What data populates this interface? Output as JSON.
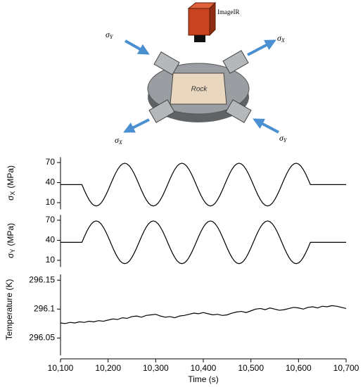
{
  "diagram": {
    "camera_label": "ImageIR",
    "specimen_label": "Rock",
    "stress_labels": [
      {
        "symbol": "σ",
        "sub": "Y"
      },
      {
        "symbol": "σ",
        "sub": "X"
      },
      {
        "symbol": "σ",
        "sub": "X"
      },
      {
        "symbol": "σ",
        "sub": "Y"
      }
    ]
  },
  "chart_data": [
    {
      "type": "line",
      "ylabel": [
        "σ",
        "X",
        "(MPa)"
      ],
      "x": [
        10100,
        10145,
        10150,
        10155,
        10160,
        10165,
        10170,
        10175,
        10180,
        10185,
        10190,
        10195,
        10200,
        10205,
        10210,
        10215,
        10220,
        10225,
        10230,
        10235,
        10240,
        10245,
        10250,
        10255,
        10260,
        10265,
        10270,
        10275,
        10280,
        10285,
        10290,
        10295,
        10300,
        10305,
        10310,
        10315,
        10320,
        10325,
        10330,
        10335,
        10340,
        10345,
        10350,
        10355,
        10360,
        10365,
        10370,
        10375,
        10380,
        10385,
        10390,
        10395,
        10400,
        10405,
        10410,
        10415,
        10420,
        10425,
        10430,
        10435,
        10440,
        10445,
        10450,
        10455,
        10460,
        10465,
        10470,
        10475,
        10480,
        10485,
        10490,
        10495,
        10500,
        10505,
        10510,
        10515,
        10520,
        10525,
        10530,
        10535,
        10540,
        10545,
        10550,
        10555,
        10560,
        10565,
        10570,
        10575,
        10580,
        10585,
        10590,
        10595,
        10600,
        10605,
        10610,
        10615,
        10620,
        10625,
        10700
      ],
      "series": [
        {
          "color": "#000000",
          "values": [
            37,
            37,
            28.7,
            21,
            14.4,
            9.3,
            6.1,
            5,
            6.1,
            9.3,
            14.4,
            21,
            28.7,
            37,
            45.3,
            53,
            59.6,
            64.7,
            67.9,
            69,
            67.9,
            64.7,
            59.6,
            53,
            45.3,
            37,
            28.7,
            21,
            14.4,
            9.3,
            6.1,
            5,
            6.1,
            9.3,
            14.4,
            21,
            28.7,
            37,
            45.3,
            53,
            59.6,
            64.7,
            67.9,
            69,
            67.9,
            64.7,
            59.6,
            53,
            45.3,
            37,
            28.7,
            21,
            14.4,
            9.3,
            6.1,
            5,
            6.1,
            9.3,
            14.4,
            21,
            28.7,
            37,
            45.3,
            53,
            59.6,
            64.7,
            67.9,
            69,
            67.9,
            64.7,
            59.6,
            53,
            45.3,
            37,
            28.7,
            21,
            14.4,
            9.3,
            6.1,
            5,
            6.1,
            9.3,
            14.4,
            21,
            28.7,
            37,
            45.3,
            53,
            59.6,
            64.7,
            67.9,
            69,
            67.9,
            64.7,
            59.6,
            53,
            45.3,
            37,
            37
          ]
        }
      ],
      "xlim": [
        10100,
        10700
      ],
      "ylim": [
        0,
        78
      ],
      "yticks": [
        10,
        40,
        70
      ]
    },
    {
      "type": "line",
      "ylabel": [
        "σ",
        "Y",
        "(MPa)"
      ],
      "x": [
        10100,
        10145,
        10150,
        10155,
        10160,
        10165,
        10170,
        10175,
        10180,
        10185,
        10190,
        10195,
        10200,
        10205,
        10210,
        10215,
        10220,
        10225,
        10230,
        10235,
        10240,
        10245,
        10250,
        10255,
        10260,
        10265,
        10270,
        10275,
        10280,
        10285,
        10290,
        10295,
        10300,
        10305,
        10310,
        10315,
        10320,
        10325,
        10330,
        10335,
        10340,
        10345,
        10350,
        10355,
        10360,
        10365,
        10370,
        10375,
        10380,
        10385,
        10390,
        10395,
        10400,
        10405,
        10410,
        10415,
        10420,
        10425,
        10430,
        10435,
        10440,
        10445,
        10450,
        10455,
        10460,
        10465,
        10470,
        10475,
        10480,
        10485,
        10490,
        10495,
        10500,
        10505,
        10510,
        10515,
        10520,
        10525,
        10530,
        10535,
        10540,
        10545,
        10550,
        10555,
        10560,
        10565,
        10570,
        10575,
        10580,
        10585,
        10590,
        10595,
        10600,
        10605,
        10610,
        10615,
        10620,
        10625,
        10700
      ],
      "series": [
        {
          "color": "#000000",
          "values": [
            37,
            37,
            45.3,
            53,
            59.6,
            64.7,
            67.9,
            69,
            67.9,
            64.7,
            59.6,
            53,
            45.3,
            37,
            28.7,
            21,
            14.4,
            9.3,
            6.1,
            5,
            6.1,
            9.3,
            14.4,
            21,
            28.7,
            37,
            45.3,
            53,
            59.6,
            64.7,
            67.9,
            69,
            67.9,
            64.7,
            59.6,
            53,
            45.3,
            37,
            28.7,
            21,
            14.4,
            9.3,
            6.1,
            5,
            6.1,
            9.3,
            14.4,
            21,
            28.7,
            37,
            45.3,
            53,
            59.6,
            64.7,
            67.9,
            69,
            67.9,
            64.7,
            59.6,
            53,
            45.3,
            37,
            28.7,
            21,
            14.4,
            9.3,
            6.1,
            5,
            6.1,
            9.3,
            14.4,
            21,
            28.7,
            37,
            45.3,
            53,
            59.6,
            64.7,
            67.9,
            69,
            67.9,
            64.7,
            59.6,
            53,
            45.3,
            37,
            28.7,
            21,
            14.4,
            9.3,
            6.1,
            5,
            6.1,
            9.3,
            14.4,
            21,
            28.7,
            37,
            37
          ]
        }
      ],
      "xlim": [
        10100,
        10700
      ],
      "ylim": [
        0,
        78
      ],
      "yticks": [
        10,
        40,
        70
      ]
    },
    {
      "type": "line",
      "ylabel": [
        "Temperature (K)"
      ],
      "xlabel": "Time (s)",
      "x": [
        10100,
        10110,
        10120,
        10130,
        10140,
        10150,
        10160,
        10170,
        10180,
        10190,
        10200,
        10210,
        10220,
        10230,
        10240,
        10250,
        10260,
        10270,
        10280,
        10290,
        10300,
        10310,
        10320,
        10330,
        10340,
        10350,
        10360,
        10370,
        10380,
        10390,
        10400,
        10410,
        10420,
        10430,
        10440,
        10450,
        10460,
        10470,
        10480,
        10490,
        10500,
        10510,
        10520,
        10530,
        10540,
        10550,
        10560,
        10570,
        10580,
        10590,
        10600,
        10610,
        10620,
        10630,
        10640,
        10650,
        10660,
        10670,
        10680,
        10690,
        10700
      ],
      "series": [
        {
          "color": "#000000",
          "values": [
            296.076,
            296.075,
            296.077,
            296.076,
            296.078,
            296.077,
            296.079,
            296.078,
            296.08,
            296.079,
            296.081,
            296.083,
            296.082,
            296.085,
            296.084,
            296.087,
            296.088,
            296.086,
            296.089,
            296.09,
            296.091,
            296.088,
            296.086,
            296.087,
            296.085,
            296.088,
            296.089,
            296.091,
            296.093,
            296.092,
            296.094,
            296.092,
            296.09,
            296.091,
            296.089,
            296.09,
            296.093,
            296.095,
            296.096,
            296.094,
            296.097,
            296.1,
            296.101,
            296.099,
            296.102,
            296.1,
            296.098,
            296.099,
            296.101,
            296.103,
            296.102,
            296.1,
            296.103,
            296.104,
            296.102,
            296.105,
            296.104,
            296.106,
            296.105,
            296.103,
            296.101
          ]
        }
      ],
      "xlim": [
        10100,
        10700
      ],
      "ylim": [
        296.02,
        296.16
      ],
      "yticks": [
        296.05,
        296.1,
        296.15
      ],
      "xticks": [
        {
          "value": 10100,
          "label": "10,100"
        },
        {
          "value": 10200,
          "label": "10,200"
        },
        {
          "value": 10300,
          "label": "10,300"
        },
        {
          "value": 10400,
          "label": "10,400"
        },
        {
          "value": 10500,
          "label": "10,500"
        },
        {
          "value": 10600,
          "label": "10,600"
        },
        {
          "value": 10700,
          "label": "10,700"
        }
      ]
    }
  ]
}
